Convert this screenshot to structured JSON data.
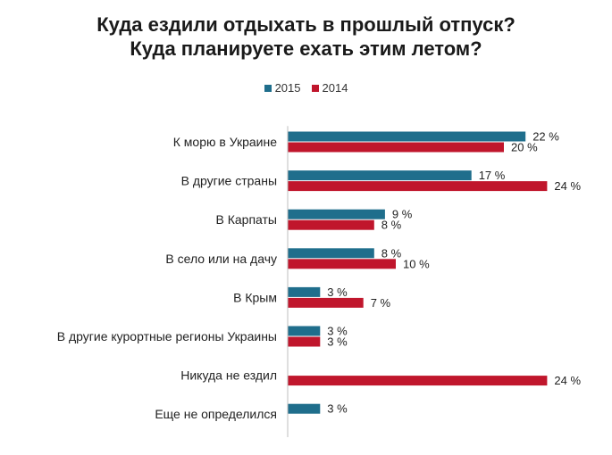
{
  "chart_data": {
    "type": "bar",
    "orientation": "horizontal",
    "title_lines": [
      "Куда ездили отдыхать в прошлый отпуск?",
      "Куда планируете ехать этим летом?"
    ],
    "categories": [
      "К морю в Украине",
      "В другие страны",
      "В Карпаты",
      "В село или на дачу",
      "В Крым",
      "В другие курортные регионы Украины",
      "Никуда не ездил",
      "Еще не определился"
    ],
    "series": [
      {
        "name": "2015",
        "color": "#1f6e8c",
        "values": [
          22,
          17,
          9,
          8,
          3,
          3,
          null,
          3
        ],
        "labels": [
          "22 %",
          "17 %",
          "9 %",
          "8 %",
          "3 %",
          "3 %",
          "",
          "3 %"
        ]
      },
      {
        "name": "2014",
        "color": "#c0162c",
        "values": [
          20,
          24,
          8,
          10,
          7,
          3,
          24,
          null
        ],
        "labels": [
          "20 %",
          "24 %",
          "8 %",
          "10 %",
          "7 %",
          "3 %",
          "24 %",
          ""
        ]
      }
    ],
    "legend_position": "top",
    "grid": false,
    "xlim": [
      0,
      25
    ]
  }
}
